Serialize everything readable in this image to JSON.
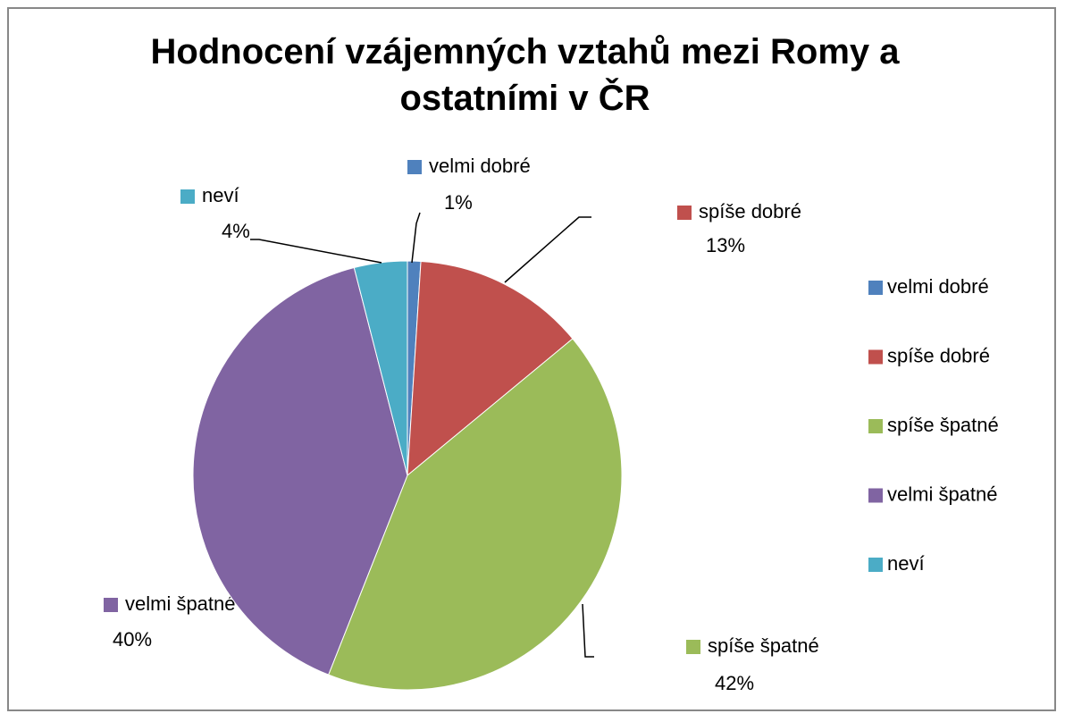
{
  "chart_data": {
    "type": "pie",
    "title": "Hodnocení vzájemných vztahů mezi Romy a ostatními v ČR",
    "categories": [
      "velmi dobré",
      "spíše dobré",
      "spíše špatné",
      "velmi špatné",
      "neví"
    ],
    "values": [
      1,
      13,
      42,
      40,
      4
    ],
    "value_labels": [
      "1%",
      "13%",
      "42%",
      "40%",
      "4%"
    ],
    "colors": [
      "#4f81bd",
      "#c0504d",
      "#9bbb59",
      "#8064a2",
      "#4bacc6"
    ],
    "legend": "right"
  }
}
